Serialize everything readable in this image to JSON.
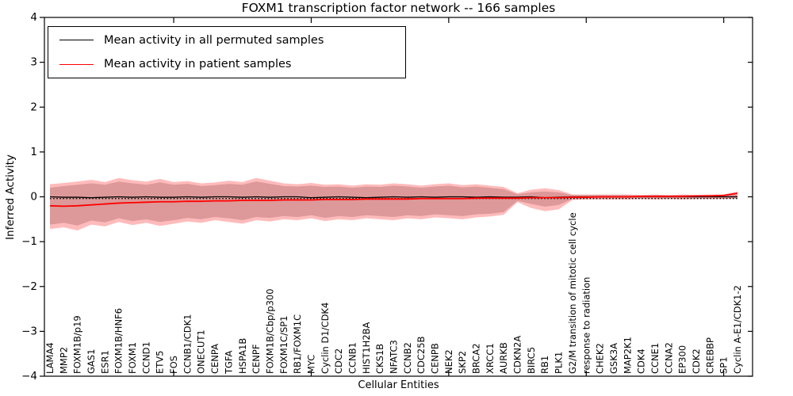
{
  "chart_data": {
    "type": "line",
    "title": "FOXM1 transcription factor network -- 166 samples",
    "xlabel": "Cellular Entities",
    "ylabel": "Inferred Activity",
    "ylim": [
      -4,
      4
    ],
    "y_tick_values": [
      4,
      3,
      2,
      1,
      0,
      -1,
      -2,
      -3,
      -4
    ],
    "y_tick_labels": [
      "4",
      "3",
      "2",
      "1",
      "0",
      "−1",
      "−2",
      "−3",
      "−4"
    ],
    "x_secondary_tick_indices": [
      9,
      19,
      29,
      39,
      49
    ],
    "grid": false,
    "legend_position": "upper left",
    "legend": [
      {
        "label": "Mean activity in all permuted samples",
        "color": "#000000"
      },
      {
        "label": "Mean activity in patient samples",
        "color": "#ff0000"
      }
    ],
    "zero_line": {
      "value": 0,
      "style": "dotted",
      "color": "#000000"
    },
    "categories": [
      "LAMA4",
      "MMP2",
      "FOXM1B/p19",
      "GAS1",
      "ESR1",
      "FOXM1B/HNF6",
      "FOXM1",
      "CCND1",
      "ETV5",
      "FOS",
      "CCNB1/CDK1",
      "ONECUT1",
      "CENPA",
      "TGFA",
      "HSPA1B",
      "CENPF",
      "FOXM1B/Cbp/p300",
      "FOXM1C/SP1",
      "RB1/FOXM1C",
      "MYC",
      "Cyclin D1/CDK4",
      "CDC2",
      "CCNB1",
      "HIST1H2BA",
      "CKS1B",
      "NFATC3",
      "CCNB2",
      "CDC25B",
      "CENPB",
      "NEK2",
      "SKP2",
      "BRCA2",
      "XRCC1",
      "AURKB",
      "CDKN2A",
      "BIRC5",
      "RB1",
      "PLK1",
      "G2/M transition of mitotic cell cycle",
      "response to radiation",
      "CHEK2",
      "GSK3A",
      "MAP2K1",
      "CDK4",
      "CCNE1",
      "CCNA2",
      "EP300",
      "CDK2",
      "CREBBP",
      "SP1",
      "Cyclin A-E1/CDK1-2"
    ],
    "series": [
      {
        "name": "Mean activity in all permuted samples",
        "color": "#000000",
        "width": 1.3,
        "values": [
          0,
          -0.01,
          -0.01,
          -0.02,
          -0.01,
          0,
          -0.01,
          0,
          -0.01,
          -0.01,
          0,
          -0.01,
          0,
          0,
          -0.01,
          0,
          -0.01,
          0,
          0,
          -0.02,
          -0.01,
          0,
          -0.01,
          -0.02,
          -0.01,
          0,
          -0.01,
          0,
          -0.01,
          0,
          0,
          -0.01,
          0,
          -0.01,
          -0.01,
          0,
          -0.02,
          -0.01,
          0,
          0,
          0,
          0,
          0,
          0,
          0,
          0,
          0,
          0,
          0,
          0,
          0
        ]
      },
      {
        "name": "Mean activity in patient samples",
        "color": "#ff0000",
        "width": 1.8,
        "values": [
          -0.2,
          -0.21,
          -0.2,
          -0.18,
          -0.16,
          -0.14,
          -0.13,
          -0.12,
          -0.11,
          -0.11,
          -0.1,
          -0.1,
          -0.09,
          -0.09,
          -0.08,
          -0.08,
          -0.08,
          -0.07,
          -0.07,
          -0.07,
          -0.06,
          -0.06,
          -0.06,
          -0.05,
          -0.05,
          -0.05,
          -0.05,
          -0.04,
          -0.04,
          -0.04,
          -0.04,
          -0.03,
          -0.03,
          -0.03,
          -0.03,
          -0.02,
          -0.02,
          -0.02,
          -0.01,
          -0.01,
          0.0,
          0.0,
          0.0,
          0.01,
          0.01,
          0.01,
          0.01,
          0.02,
          0.02,
          0.03,
          0.08
        ]
      }
    ],
    "bands": [
      {
        "name": "permuted-samples-band",
        "color": "#888888",
        "opacity": 0.42,
        "upper": [
          0.2,
          0.24,
          0.27,
          0.3,
          0.27,
          0.34,
          0.3,
          0.27,
          0.32,
          0.27,
          0.29,
          0.24,
          0.26,
          0.29,
          0.27,
          0.34,
          0.29,
          0.24,
          0.23,
          0.25,
          0.22,
          0.23,
          0.2,
          0.23,
          0.22,
          0.25,
          0.23,
          0.2,
          0.23,
          0.25,
          0.21,
          0.23,
          0.2,
          0.17,
          0.06,
          0.1,
          0.12,
          0.1,
          0.04,
          0.04,
          0.04,
          0.04,
          0.04,
          0.03,
          0.04,
          0.03,
          0.04,
          0.03,
          0.04,
          0.04,
          0.05
        ],
        "lower": [
          -0.62,
          -0.58,
          -0.64,
          -0.53,
          -0.57,
          -0.48,
          -0.54,
          -0.5,
          -0.56,
          -0.52,
          -0.47,
          -0.5,
          -0.45,
          -0.48,
          -0.52,
          -0.45,
          -0.47,
          -0.43,
          -0.45,
          -0.41,
          -0.47,
          -0.43,
          -0.45,
          -0.41,
          -0.43,
          -0.45,
          -0.41,
          -0.43,
          -0.39,
          -0.41,
          -0.43,
          -0.39,
          -0.38,
          -0.34,
          -0.09,
          -0.16,
          -0.22,
          -0.18,
          -0.05,
          -0.04,
          -0.04,
          -0.04,
          -0.04,
          -0.04,
          -0.04,
          -0.04,
          -0.04,
          -0.04,
          -0.04,
          -0.04,
          -0.04
        ]
      },
      {
        "name": "patient-samples-band",
        "color": "#ff2a2a",
        "opacity": 0.32,
        "upper": [
          0.28,
          0.31,
          0.34,
          0.38,
          0.33,
          0.42,
          0.37,
          0.34,
          0.4,
          0.33,
          0.35,
          0.3,
          0.32,
          0.36,
          0.33,
          0.42,
          0.36,
          0.3,
          0.28,
          0.31,
          0.27,
          0.28,
          0.25,
          0.28,
          0.27,
          0.3,
          0.28,
          0.25,
          0.28,
          0.3,
          0.26,
          0.28,
          0.25,
          0.22,
          0.08,
          0.16,
          0.19,
          0.15,
          0.05,
          0.05,
          0.05,
          0.05,
          0.05,
          0.04,
          0.05,
          0.04,
          0.05,
          0.04,
          0.05,
          0.05,
          0.12
        ],
        "lower": [
          -0.72,
          -0.68,
          -0.75,
          -0.62,
          -0.66,
          -0.56,
          -0.63,
          -0.58,
          -0.65,
          -0.6,
          -0.55,
          -0.58,
          -0.52,
          -0.56,
          -0.6,
          -0.52,
          -0.55,
          -0.5,
          -0.52,
          -0.48,
          -0.54,
          -0.5,
          -0.52,
          -0.48,
          -0.5,
          -0.52,
          -0.48,
          -0.5,
          -0.46,
          -0.48,
          -0.5,
          -0.46,
          -0.44,
          -0.4,
          -0.12,
          -0.25,
          -0.32,
          -0.28,
          -0.07,
          -0.06,
          -0.06,
          -0.06,
          -0.06,
          -0.05,
          -0.06,
          -0.05,
          -0.06,
          -0.05,
          -0.05,
          -0.05,
          -0.03
        ]
      }
    ]
  }
}
